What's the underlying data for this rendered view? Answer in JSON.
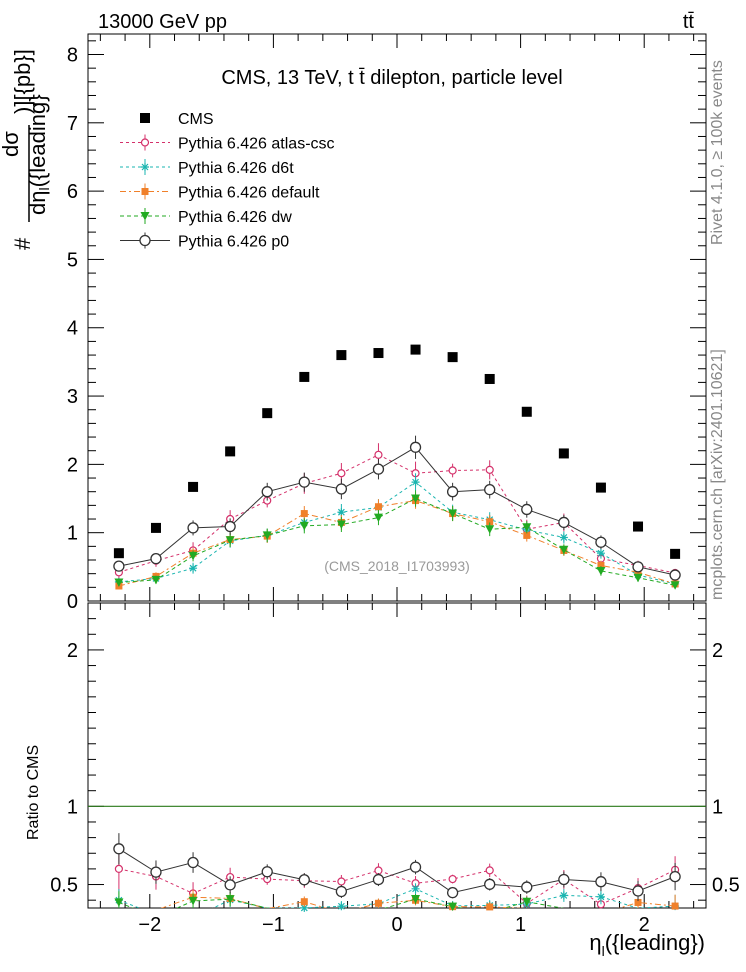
{
  "header": {
    "left": "13000 GeV pp",
    "right": "tt̄"
  },
  "side_text": {
    "rivet": "Rivet 4.1.0, ≥ 100k events",
    "mcplots": "mcplots.cern.ch [arXiv:2401.10621]"
  },
  "chart_data": {
    "type": "scatter",
    "title": "CMS, 13 TeV, t t̄ dilepton, particle level",
    "watermark": "(CMS_2018_I1703993)",
    "xlabel": "ηl({leading})",
    "ylabel_main": "# dσ / dηl({leading}) )][{pb}]",
    "ylabel_ratio": "Ratio to CMS",
    "xlim": [
      -2.5,
      2.5
    ],
    "ylim_main": [
      0,
      8.3
    ],
    "ylim_ratio": [
      0.35,
      2.3
    ],
    "x_ticks": [
      -2,
      -1,
      0,
      1,
      2
    ],
    "x_tick_labels": [
      "−2",
      "−1",
      "0",
      "1",
      "2"
    ],
    "y_ticks_main": [
      0,
      1,
      2,
      3,
      4,
      5,
      6,
      7,
      8
    ],
    "y_tick_labels_main": [
      "0",
      "1",
      "2",
      "3",
      "4",
      "5",
      "6",
      "7",
      "8"
    ],
    "y_ticks_ratio": [
      0.5,
      1,
      2
    ],
    "y_tick_labels_ratio": [
      "0.5",
      "1",
      "2"
    ],
    "x": [
      -2.25,
      -1.95,
      -1.65,
      -1.35,
      -1.05,
      -0.75,
      -0.45,
      -0.15,
      0.15,
      0.45,
      0.75,
      1.05,
      1.35,
      1.65,
      1.95,
      2.25
    ],
    "series": [
      {
        "name": "CMS",
        "color": "#000000",
        "marker": "square",
        "values": [
          0.7,
          1.07,
          1.67,
          2.19,
          2.75,
          3.28,
          3.6,
          3.63,
          3.68,
          3.57,
          3.25,
          2.77,
          2.16,
          1.66,
          1.09,
          0.69
        ]
      },
      {
        "name": "Pythia 6.426 atlas-csc",
        "color": "#d4306a",
        "marker": "open-circle-small",
        "dash": "3,3",
        "values": [
          0.42,
          0.59,
          0.74,
          1.2,
          1.47,
          1.72,
          1.87,
          2.14,
          1.87,
          1.91,
          1.92,
          1.05,
          1.15,
          0.62,
          0.52,
          0.41
        ],
        "errors": [
          0.1,
          0.09,
          0.12,
          0.13,
          0.1,
          0.15,
          0.15,
          0.17,
          0.17,
          0.1,
          0.14,
          0.14,
          0.13,
          0.1,
          0.07,
          0.06
        ]
      },
      {
        "name": "Pythia 6.426 d6t",
        "color": "#1ab5b0",
        "marker": "star",
        "dash": "3,3",
        "values": [
          0.28,
          0.33,
          0.48,
          0.88,
          0.96,
          1.15,
          1.3,
          1.37,
          1.74,
          1.3,
          1.19,
          1.04,
          0.93,
          0.7,
          0.38,
          0.25
        ],
        "errors": [
          0.05,
          0.07,
          0.08,
          0.1,
          0.1,
          0.12,
          0.12,
          0.12,
          0.13,
          0.11,
          0.11,
          0.1,
          0.09,
          0.08,
          0.06,
          0.05
        ]
      },
      {
        "name": "Pythia 6.426 default",
        "color": "#f0802a",
        "marker": "filled-square",
        "dash": "6,3,2,3",
        "values": [
          0.22,
          0.36,
          0.7,
          0.9,
          0.95,
          1.28,
          1.15,
          1.38,
          1.47,
          1.28,
          1.16,
          0.96,
          0.74,
          0.52,
          0.42,
          0.25
        ],
        "errors": [
          0.05,
          0.06,
          0.08,
          0.1,
          0.1,
          0.11,
          0.11,
          0.11,
          0.12,
          0.11,
          0.1,
          0.09,
          0.08,
          0.07,
          0.06,
          0.05
        ]
      },
      {
        "name": "Pythia 6.426 dw",
        "color": "#22aa22",
        "marker": "triangle-down",
        "dash": "4,3",
        "values": [
          0.27,
          0.31,
          0.66,
          0.89,
          0.96,
          1.1,
          1.12,
          1.22,
          1.5,
          1.28,
          1.05,
          1.08,
          0.75,
          0.44,
          0.34,
          0.23
        ],
        "errors": [
          0.05,
          0.06,
          0.08,
          0.1,
          0.1,
          0.11,
          0.11,
          0.11,
          0.12,
          0.11,
          0.1,
          0.09,
          0.08,
          0.07,
          0.06,
          0.05
        ]
      },
      {
        "name": "Pythia 6.426 p0",
        "color": "#333333",
        "marker": "open-circle",
        "dash": "",
        "values": [
          0.51,
          0.62,
          1.07,
          1.09,
          1.6,
          1.74,
          1.64,
          1.93,
          2.25,
          1.6,
          1.63,
          1.34,
          1.15,
          0.86,
          0.5,
          0.38
        ],
        "errors": [
          0.07,
          0.08,
          0.11,
          0.12,
          0.13,
          0.14,
          0.15,
          0.15,
          0.17,
          0.13,
          0.13,
          0.12,
          0.11,
          0.1,
          0.07,
          0.06
        ]
      }
    ]
  }
}
